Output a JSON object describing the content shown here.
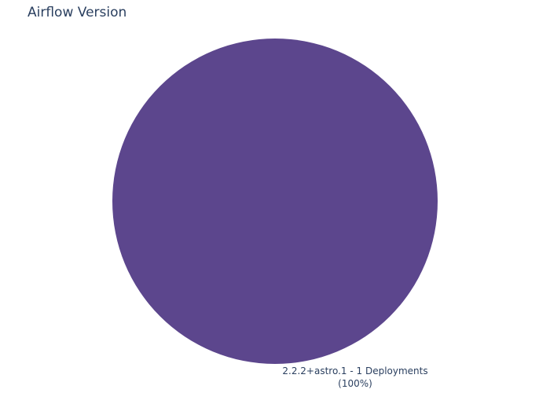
{
  "chart_data": {
    "type": "pie",
    "title": "Airflow Version",
    "slices": [
      {
        "label": "2.2.2+astro.1",
        "value": 1,
        "unit": "Deployments",
        "percent_text": "(100%)",
        "color": "#5c468d"
      }
    ],
    "legend": "none",
    "label_color": "#2a3f5f"
  }
}
